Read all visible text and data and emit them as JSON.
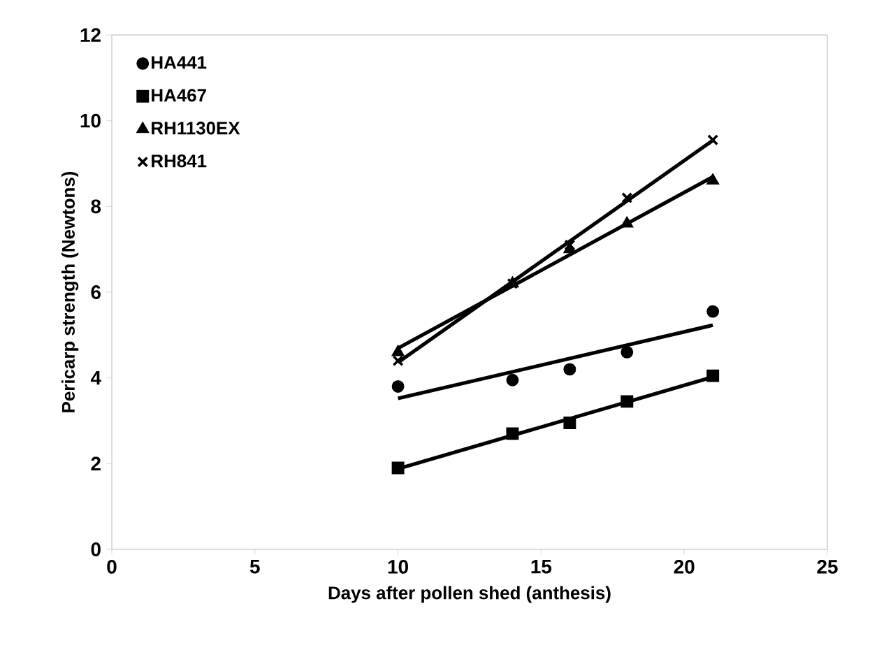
{
  "chart_data": {
    "type": "scatter",
    "xlabel": "Days after pollen shed (anthesis)",
    "ylabel": "Pericarp strength (Newtons)",
    "xlim": [
      0,
      25
    ],
    "ylim": [
      0,
      12
    ],
    "xticks": [
      0,
      5,
      10,
      15,
      20,
      25
    ],
    "yticks": [
      0,
      2,
      4,
      6,
      8,
      10,
      12
    ],
    "grid": false,
    "legend": "top left",
    "series": [
      {
        "name": "HA441",
        "color": "#000000",
        "marker": "circle",
        "x": [
          10,
          14,
          16,
          18,
          21
        ],
        "values": [
          3.8,
          3.95,
          4.2,
          4.6,
          5.55
        ]
      },
      {
        "name": "HA467",
        "color": "#000000",
        "marker": "square",
        "x": [
          10,
          14,
          16,
          18,
          21
        ],
        "values": [
          1.9,
          2.7,
          2.95,
          3.45,
          4.05
        ]
      },
      {
        "name": "RH1130EX",
        "color": "#000000",
        "marker": "triangle",
        "x": [
          10,
          14,
          16,
          18,
          21
        ],
        "values": [
          4.6,
          6.2,
          7.0,
          7.6,
          8.6
        ]
      },
      {
        "name": "RH841",
        "color": "#000000",
        "marker": "cross",
        "x": [
          10,
          14,
          16,
          18,
          21
        ],
        "values": [
          4.4,
          6.2,
          7.1,
          8.2,
          9.55
        ]
      },
      {
        "type": "line",
        "color": "#000000",
        "marker": "none",
        "x": [
          10,
          21
        ],
        "values": [
          3.52,
          5.23
        ]
      },
      {
        "type": "line",
        "color": "#000000",
        "marker": "none",
        "x": [
          10,
          21
        ],
        "values": [
          1.88,
          4.02
        ]
      },
      {
        "type": "line",
        "color": "#000000",
        "marker": "none",
        "x": [
          10,
          21
        ],
        "values": [
          4.69,
          8.69
        ]
      },
      {
        "type": "line",
        "color": "#000000",
        "marker": "none",
        "x": [
          10,
          21
        ],
        "values": [
          4.36,
          9.54
        ]
      }
    ]
  }
}
